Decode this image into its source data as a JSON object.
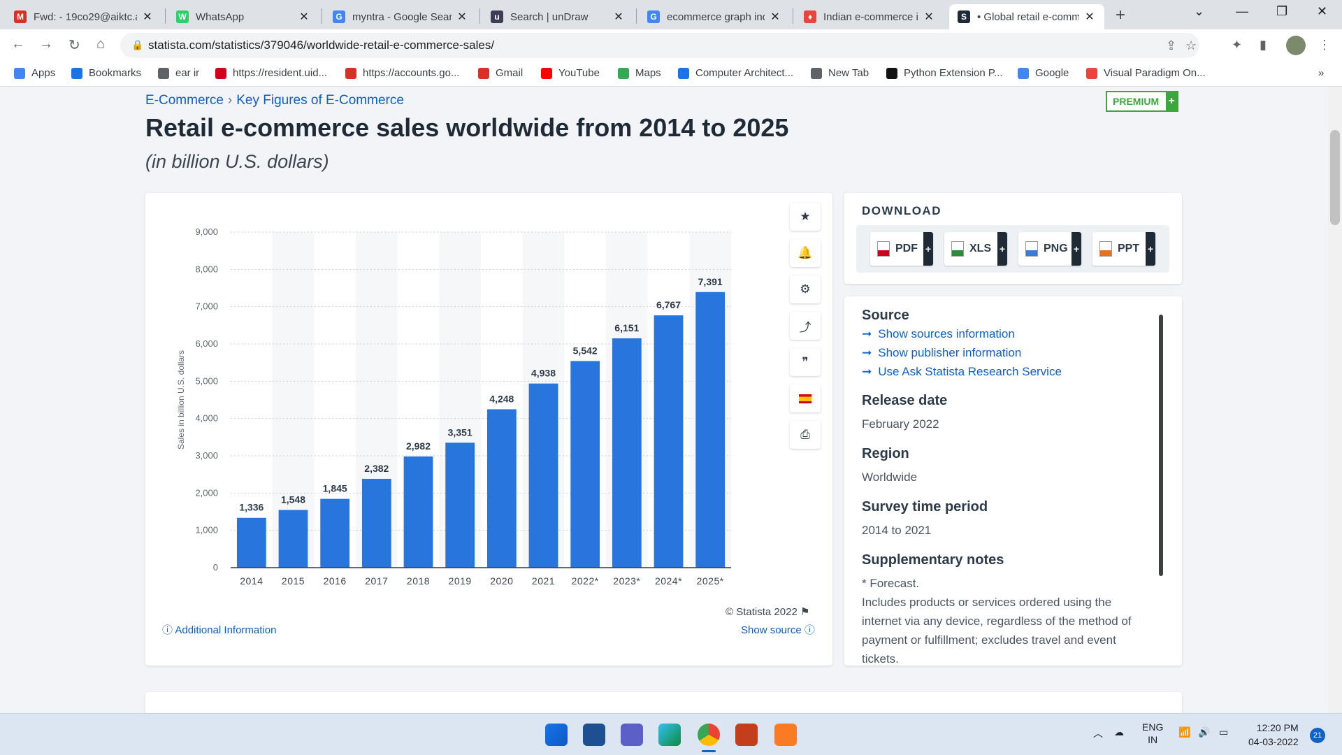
{
  "browser": {
    "tabs": [
      {
        "title": "Fwd: - 19co29@aiktc.a",
        "icon": "gmail-icon",
        "color": "#d93025",
        "glyph": "M"
      },
      {
        "title": "WhatsApp",
        "icon": "whatsapp-icon",
        "color": "#25d366",
        "glyph": "W"
      },
      {
        "title": "myntra - Google Sear",
        "icon": "google-icon",
        "color": "#4285f4",
        "glyph": "G"
      },
      {
        "title": "Search | unDraw",
        "icon": "undraw-icon",
        "color": "#3f3d56",
        "glyph": "u"
      },
      {
        "title": "ecommerce graph ind",
        "icon": "google-icon",
        "color": "#4285f4",
        "glyph": "G"
      },
      {
        "title": "Indian e-commerce in",
        "icon": "flame-icon",
        "color": "#e8453c",
        "glyph": "♦"
      },
      {
        "title": "• Global retail e-comm",
        "icon": "statista-icon",
        "color": "#1f2a37",
        "glyph": "S"
      }
    ],
    "url": "statista.com/statistics/379046/worldwide-retail-e-commerce-sales/",
    "bookmarks": [
      {
        "label": "Apps",
        "icon": "apps-grid-icon",
        "color": "#4285f4"
      },
      {
        "label": "Bookmarks",
        "icon": "star-icon",
        "color": "#1a73e8"
      },
      {
        "label": "ear ir",
        "icon": "globe-icon",
        "color": "#5f6368"
      },
      {
        "label": "https://resident.uid...",
        "icon": "uidai-icon",
        "color": "#d0021b"
      },
      {
        "label": "https://accounts.go...",
        "icon": "gmail-icon",
        "color": "#d93025"
      },
      {
        "label": "Gmail",
        "icon": "gmail-icon",
        "color": "#d93025"
      },
      {
        "label": "YouTube",
        "icon": "youtube-icon",
        "color": "#ff0000"
      },
      {
        "label": "Maps",
        "icon": "maps-icon",
        "color": "#34a853"
      },
      {
        "label": "Computer Architect...",
        "icon": "course-icon",
        "color": "#1a73e8"
      },
      {
        "label": "New Tab",
        "icon": "globe-icon",
        "color": "#5f6368"
      },
      {
        "label": "Python Extension P...",
        "icon": "python-icon",
        "color": "#111111"
      },
      {
        "label": "Google",
        "icon": "google-icon",
        "color": "#4285f4"
      },
      {
        "label": "Visual Paradigm On...",
        "icon": "vp-icon",
        "color": "#e8453c"
      }
    ],
    "bookmarks_more": "»"
  },
  "page": {
    "breadcrumb": [
      "E-Commerce",
      "Key Figures of E-Commerce"
    ],
    "breadcrumb_sep": "›",
    "premium_label": "PREMIUM",
    "title": "Retail e-commerce sales worldwide from 2014 to 2025",
    "subtitle": "(in billion U.S. dollars)",
    "copyright": "© Statista 2022",
    "additional_info": "Additional Information",
    "show_source": "Show source"
  },
  "download": {
    "heading": "DOWNLOAD",
    "formats": [
      {
        "label": "PDF",
        "color": "#d0021b"
      },
      {
        "label": "XLS",
        "color": "#2e8b3a"
      },
      {
        "label": "PNG",
        "color": "#3a7bd5"
      },
      {
        "label": "PPT",
        "color": "#e8711c"
      }
    ]
  },
  "source_panel": {
    "source_title": "Source",
    "links": [
      "Show sources information",
      "Show publisher information",
      "Use Ask Statista Research Service"
    ],
    "release_title": "Release date",
    "release_value": "February 2022",
    "region_title": "Region",
    "region_value": "Worldwide",
    "survey_title": "Survey time period",
    "survey_value": "2014 to 2021",
    "notes_title": "Supplementary notes",
    "notes_line1": "* Forecast.",
    "notes_line2": "Includes products or services ordered using the internet via any device, regardless of the method of payment or fulfillment; excludes travel and event tickets."
  },
  "chart_data": {
    "type": "bar",
    "categories": [
      "2014",
      "2015",
      "2016",
      "2017",
      "2018",
      "2019",
      "2020",
      "2021",
      "2022*",
      "2023*",
      "2024*",
      "2025*"
    ],
    "values": [
      1336,
      1548,
      1845,
      2382,
      2982,
      3351,
      4248,
      4938,
      5542,
      6151,
      6767,
      7391
    ],
    "value_labels": [
      "1,336",
      "1,548",
      "1,845",
      "2,382",
      "2,982",
      "3,351",
      "4,248",
      "4,938",
      "5,542",
      "6,151",
      "6,767",
      "7,391"
    ],
    "ylabel": "Sales in billion U.S. dollars",
    "yticks": [
      0,
      1000,
      2000,
      3000,
      4000,
      5000,
      6000,
      7000,
      8000,
      9000
    ],
    "ytick_labels": [
      "0",
      "1,000",
      "2,000",
      "3,000",
      "4,000",
      "5,000",
      "6,000",
      "7,000",
      "8,000",
      "9,000"
    ],
    "ylim": [
      0,
      9000
    ],
    "bar_color": "#2876dd",
    "grid": true
  },
  "taskbar": {
    "apps": [
      "windows-start-icon",
      "widgets-icon",
      "teams-chat-icon",
      "edge-icon",
      "chrome-icon",
      "powerpoint-icon",
      "xampp-icon"
    ],
    "lang_top": "ENG",
    "lang_bottom": "IN",
    "time": "12:20 PM",
    "date": "04-03-2022",
    "notifications": "21"
  }
}
